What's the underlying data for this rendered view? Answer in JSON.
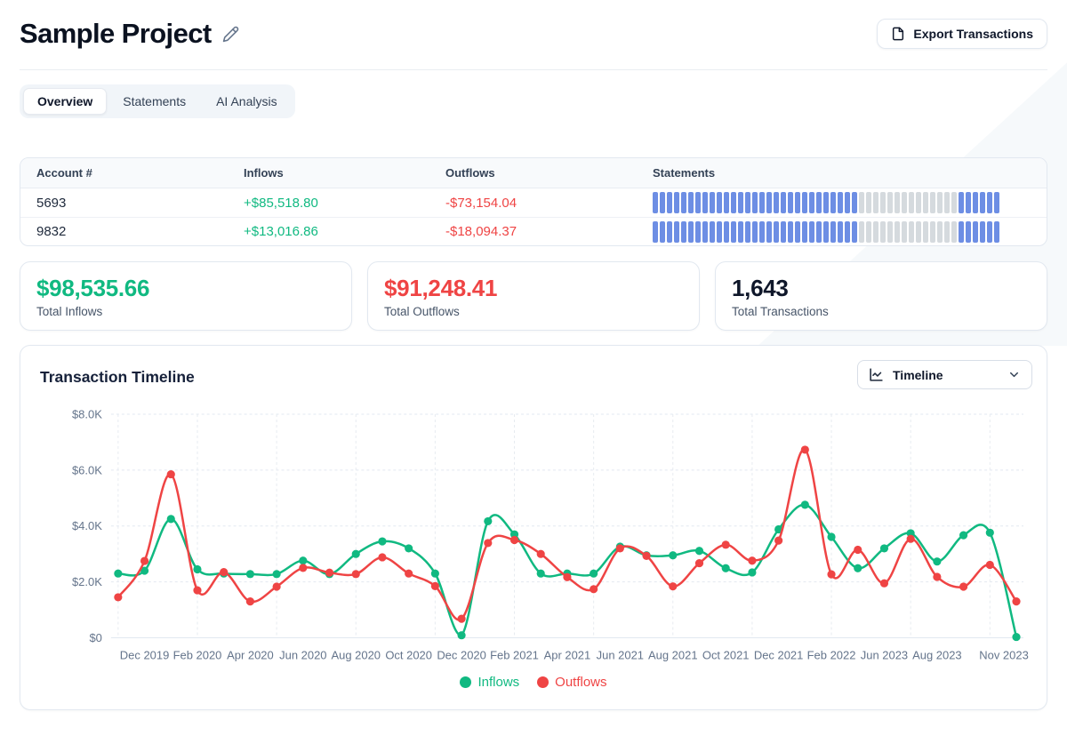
{
  "header": {
    "title": "Sample Project",
    "export_button_label": "Export Transactions"
  },
  "tabs": [
    {
      "label": "Overview",
      "active": true
    },
    {
      "label": "Statements",
      "active": false
    },
    {
      "label": "AI Analysis",
      "active": false
    }
  ],
  "accounts_table": {
    "columns": [
      "Account #",
      "Inflows",
      "Outflows",
      "Statements"
    ],
    "rows": [
      {
        "account": "5693",
        "inflow": "+$85,518.80",
        "outflow": "-$73,154.04",
        "statements_pattern": [
          [
            "present",
            29
          ],
          [
            "missing",
            14
          ],
          [
            "present",
            6
          ]
        ]
      },
      {
        "account": "9832",
        "inflow": "+$13,016.86",
        "outflow": "-$18,094.37",
        "statements_pattern": [
          [
            "present",
            29
          ],
          [
            "missing",
            14
          ],
          [
            "present",
            6
          ]
        ]
      }
    ],
    "statement_colors": {
      "present": "#6d8ee4",
      "missing": "#d5dade"
    }
  },
  "summary_cards": [
    {
      "value": "$98,535.66",
      "label": "Total Inflows",
      "color": "#10b981"
    },
    {
      "value": "$91,248.41",
      "label": "Total Outflows",
      "color": "#ef4444"
    },
    {
      "value": "1,643",
      "label": "Total Transactions",
      "color": "#0f172a"
    }
  ],
  "timeline_section": {
    "title": "Transaction Timeline",
    "selector_label": "Timeline"
  },
  "chart_data": {
    "type": "line",
    "title": "Transaction Timeline",
    "x": [
      "Nov 2019",
      "Dec 2019",
      "Jan 2020",
      "Feb 2020",
      "Mar 2020",
      "Apr 2020",
      "May 2020",
      "Jun 2020",
      "Jul 2020",
      "Aug 2020",
      "Sep 2020",
      "Oct 2020",
      "Nov 2020",
      "Dec 2020",
      "Jan 2021",
      "Feb 2021",
      "Mar 2021",
      "Apr 2021",
      "May 2021",
      "Jun 2021",
      "Jul 2021",
      "Aug 2021",
      "Sep 2021",
      "Oct 2021",
      "Nov 2021",
      "Dec 2021",
      "Jan 2022",
      "Feb 2022",
      "Mar 2022",
      "Jun 2023",
      "Jul 2023",
      "Aug 2023",
      "Sep 2023",
      "Oct 2023",
      "Nov 2023"
    ],
    "series": [
      {
        "name": "Inflows",
        "color": "#10b981",
        "values": [
          2300,
          2400,
          4250,
          2450,
          2300,
          2280,
          2280,
          2760,
          2280,
          3000,
          3450,
          3200,
          2300,
          90,
          4170,
          3700,
          2300,
          2300,
          2300,
          3260,
          2950,
          2950,
          3110,
          2490,
          2340,
          3880,
          4760,
          3610,
          2490,
          3200,
          3740,
          2730,
          3670,
          3760,
          30
        ]
      },
      {
        "name": "Outflows",
        "color": "#ef4444",
        "values": [
          1450,
          2750,
          5850,
          1700,
          2350,
          1300,
          1830,
          2500,
          2330,
          2280,
          2880,
          2300,
          1850,
          680,
          3390,
          3500,
          3000,
          2170,
          1740,
          3200,
          2930,
          1840,
          2670,
          3330,
          2760,
          3480,
          6730,
          2270,
          3150,
          1950,
          3540,
          2180,
          1830,
          2610,
          1300
        ]
      }
    ],
    "ylim": [
      0,
      8000
    ],
    "y_ticks": [
      {
        "v": 0,
        "label": "$0"
      },
      {
        "v": 2000,
        "label": "$2.0K"
      },
      {
        "v": 4000,
        "label": "$4.0K"
      },
      {
        "v": 6000,
        "label": "$6.0K"
      },
      {
        "v": 8000,
        "label": "$8.0K"
      }
    ],
    "x_tick_indices": [
      1,
      3,
      5,
      7,
      9,
      11,
      13,
      15,
      17,
      19,
      21,
      23,
      25,
      27,
      29,
      31,
      34
    ],
    "x_grid_indices": [
      0,
      3,
      6,
      9,
      12,
      15,
      18,
      21,
      24,
      27,
      30,
      33
    ],
    "grid": true,
    "legend_position": "bottom",
    "xlabel": "",
    "ylabel": ""
  }
}
